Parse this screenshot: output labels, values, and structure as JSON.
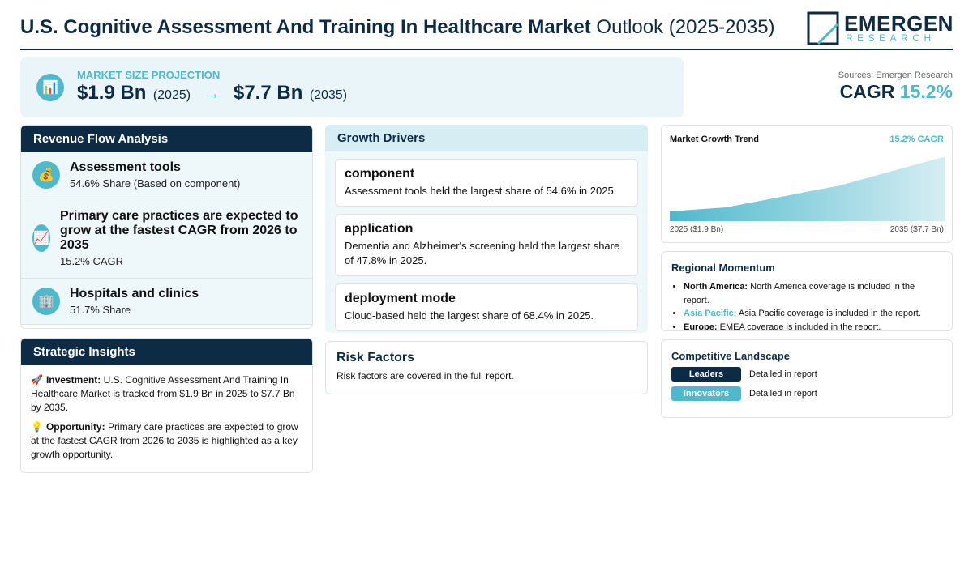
{
  "header": {
    "title_bold": "U.S. Cognitive Assessment And Training In Healthcare Market",
    "title_rest": "Outlook (2025-2035)",
    "logo_main": "EMERGEN",
    "logo_sub": "RESEARCH"
  },
  "projection": {
    "icon": "📊",
    "label": "MARKET SIZE PROJECTION",
    "start_value": "$1.9 Bn",
    "start_year": "(2025)",
    "arrow": "→",
    "end_value": "$7.7 Bn",
    "end_year": "(2035)"
  },
  "summary": {
    "sources": "Sources: Emergen Research",
    "cagr_label": "CAGR",
    "cagr_value": "15.2%"
  },
  "revenue_flow": {
    "title": "Revenue Flow Analysis",
    "items": [
      {
        "icon": "💰",
        "title": "Assessment tools",
        "sub": "54.6% Share (Based on component)"
      },
      {
        "icon": "📈",
        "title": "Primary care practices are expected to grow at the fastest CAGR from 2026 to 2035",
        "sub": "15.2% CAGR"
      },
      {
        "icon": "🏢",
        "title": "Hospitals and clinics",
        "sub": "51.7% Share"
      }
    ]
  },
  "strategic_insights": {
    "title": "Strategic Insights",
    "items": [
      {
        "icon": "🚀",
        "label": "Investment:",
        "text": "U.S. Cognitive Assessment And Training In Healthcare Market is tracked from $1.9 Bn in 2025 to $7.7 Bn by 2035."
      },
      {
        "icon": "💡",
        "label": "Opportunity:",
        "text": "Primary care practices are expected to grow at the fastest CAGR from 2026 to 2035 is highlighted as a key growth opportunity."
      }
    ]
  },
  "growth_drivers": {
    "title": "Growth Drivers",
    "items": [
      {
        "title": "component",
        "text": "Assessment tools held the largest share of 54.6% in 2025."
      },
      {
        "title": "application",
        "text": "Dementia and Alzheimer's screening held the largest share of 47.8% in 2025."
      },
      {
        "title": "deployment mode",
        "text": "Cloud-based held the largest share of 68.4% in 2025."
      }
    ]
  },
  "risk_factors": {
    "title": "Risk Factors",
    "text": "Risk factors are covered in the full report."
  },
  "trend": {
    "title": "Market Growth Trend",
    "cagr": "15.2% CAGR",
    "start_label": "2025 ($1.9 Bn)",
    "end_label": "2035 ($7.7 Bn)"
  },
  "regional": {
    "title": "Regional Momentum",
    "items": [
      {
        "region": "North America:",
        "text": "North America coverage is included in the report."
      },
      {
        "region": "Asia Pacific:",
        "text": "Asia Pacific coverage is included in the report."
      },
      {
        "region": "Europe:",
        "text": "EMEA coverage is included in the report."
      }
    ]
  },
  "competitive": {
    "title": "Competitive Landscape",
    "items": [
      {
        "badge": "Leaders",
        "text": "Detailed in report"
      },
      {
        "badge": "Innovators",
        "text": "Detailed in report"
      }
    ]
  }
}
